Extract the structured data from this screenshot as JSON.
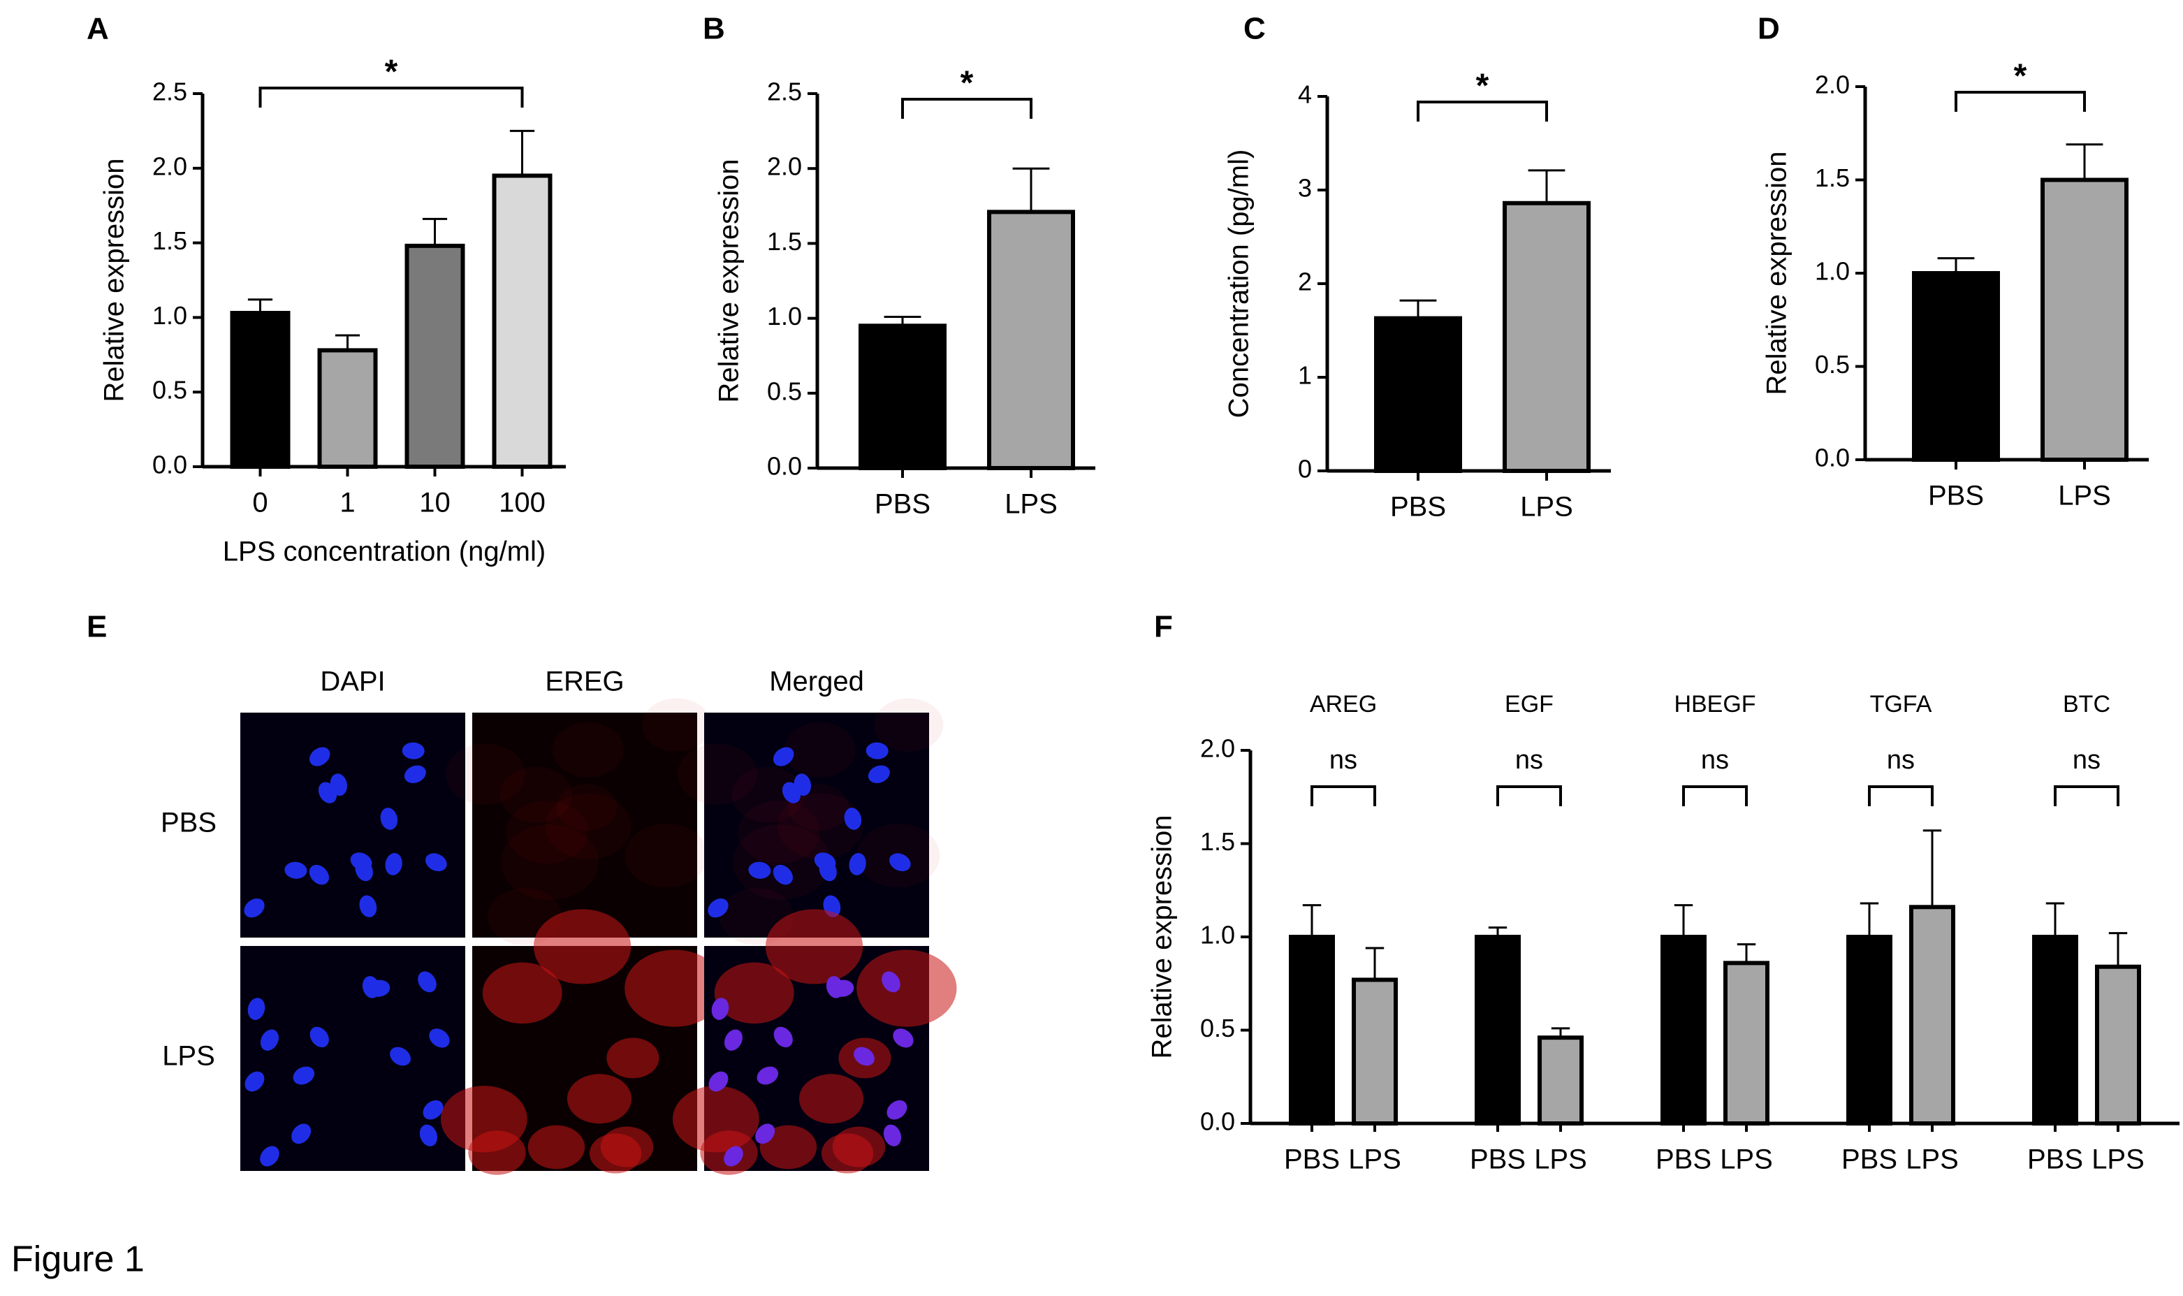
{
  "figure_label": "Figure 1",
  "chart_data": [
    {
      "panel": "A",
      "type": "bar",
      "ylabel": "Relative expression",
      "xlabel": "LPS concentration (ng/ml)",
      "categories": [
        "0",
        "1",
        "10",
        "100"
      ],
      "values": [
        1.03,
        0.78,
        1.48,
        1.95
      ],
      "errors": [
        0.09,
        0.1,
        0.18,
        0.3
      ],
      "colors": [
        "#000000",
        "#a6a6a6",
        "#7a7a7a",
        "#d9d9d9"
      ],
      "ylim": [
        0,
        2.5
      ],
      "yticks": [
        {
          "value": 0,
          "label": "0.0"
        },
        0.5,
        {
          "value": 1,
          "label": "1.0"
        },
        1.5,
        {
          "value": 2,
          "label": "2.0"
        },
        2.5
      ],
      "significance": [
        {
          "groups": [
            "0",
            "100"
          ],
          "label": "*"
        }
      ]
    },
    {
      "panel": "B",
      "type": "bar",
      "ylabel": "Relative expression",
      "categories": [
        "PBS",
        "LPS"
      ],
      "values": [
        0.95,
        1.71
      ],
      "errors": [
        0.06,
        0.29
      ],
      "colors": [
        "#000000",
        "#a6a6a6"
      ],
      "ylim": [
        0,
        2.5
      ],
      "yticks": [
        {
          "value": 0,
          "label": "0.0"
        },
        0.5,
        {
          "value": 1,
          "label": "1.0"
        },
        1.5,
        {
          "value": 2,
          "label": "2.0"
        },
        2.5
      ],
      "significance": [
        {
          "groups": [
            "PBS",
            "LPS"
          ],
          "label": "*"
        }
      ]
    },
    {
      "panel": "C",
      "type": "bar",
      "ylabel": "Concentration (pg/ml)",
      "categories": [
        "PBS",
        "LPS"
      ],
      "values": [
        1.63,
        2.86
      ],
      "errors": [
        0.19,
        0.35
      ],
      "colors": [
        "#000000",
        "#a6a6a6"
      ],
      "ylim": [
        0,
        4
      ],
      "yticks": [
        0,
        1,
        2,
        3,
        4
      ],
      "significance": [
        {
          "groups": [
            "PBS",
            "LPS"
          ],
          "label": "*"
        }
      ]
    },
    {
      "panel": "D",
      "type": "bar",
      "ylabel": "Relative expression",
      "categories": [
        "PBS",
        "LPS"
      ],
      "values": [
        1.0,
        1.5
      ],
      "errors": [
        0.08,
        0.19
      ],
      "colors": [
        "#000000",
        "#a6a6a6"
      ],
      "ylim": [
        0,
        2
      ],
      "yticks": [
        {
          "value": 0,
          "label": "0.0"
        },
        0.5,
        {
          "value": 1,
          "label": "1.0"
        },
        1.5,
        {
          "value": 2,
          "label": "2.0"
        }
      ],
      "significance": [
        {
          "groups": [
            "PBS",
            "LPS"
          ],
          "label": "*"
        }
      ]
    },
    {
      "panel": "F",
      "type": "grouped_bar",
      "ylabel": "Relative expression",
      "groups": [
        "AREG",
        "EGF",
        "HBEGF",
        "TGFA",
        "BTC"
      ],
      "series": [
        {
          "name": "PBS",
          "color": "#000000",
          "values": [
            1.0,
            1.0,
            1.0,
            1.0,
            1.0
          ],
          "errors": [
            0.17,
            0.05,
            0.17,
            0.18,
            0.18
          ]
        },
        {
          "name": "LPS",
          "color": "#a6a6a6",
          "values": [
            0.77,
            0.46,
            0.86,
            1.16,
            0.84
          ],
          "errors": [
            0.17,
            0.05,
            0.1,
            0.41,
            0.18
          ]
        }
      ],
      "ylim": [
        0,
        2
      ],
      "yticks": [
        {
          "value": 0,
          "label": "0.0"
        },
        0.5,
        {
          "value": 1,
          "label": "1.0"
        },
        1.5,
        {
          "value": 2,
          "label": "2.0"
        }
      ],
      "significance": [
        "ns",
        "ns",
        "ns",
        "ns",
        "ns"
      ]
    }
  ],
  "image_panel": {
    "panel": "E",
    "columns": [
      "DAPI",
      "EREG",
      "Merged"
    ],
    "rows": [
      "PBS",
      "LPS"
    ]
  }
}
